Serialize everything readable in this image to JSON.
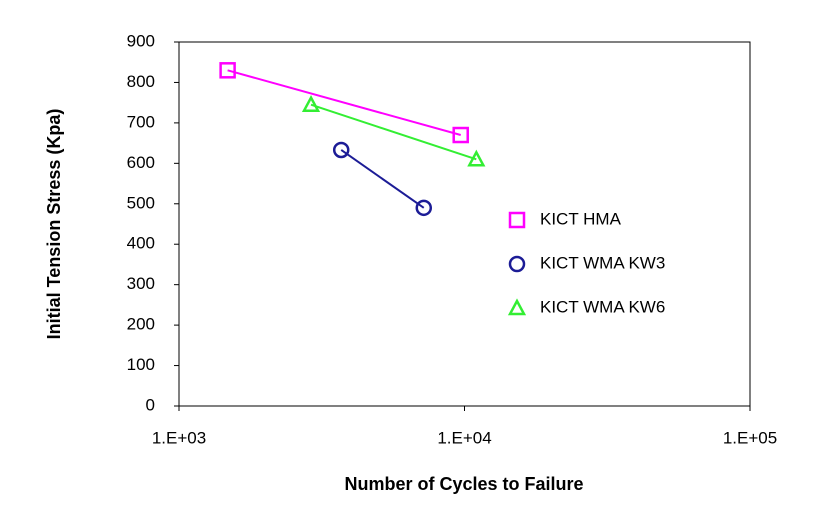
{
  "chart_data": {
    "type": "line",
    "x_label": "Number of Cycles to Failure",
    "y_label": "Initial Tension Stress (Kpa)",
    "xscale": "log",
    "xlim": [
      1000,
      100000
    ],
    "xticks": [
      {
        "value": 1000,
        "label": "1.E+03"
      },
      {
        "value": 10000,
        "label": "1.E+04"
      },
      {
        "value": 100000,
        "label": "1.E+05"
      }
    ],
    "ylim": [
      0,
      900
    ],
    "yticks": [
      0,
      100,
      200,
      300,
      400,
      500,
      600,
      700,
      800,
      900
    ],
    "grid": false,
    "legend": "right",
    "series": [
      {
        "name": "KICT HMA",
        "color": "#ff00ff",
        "marker": "square",
        "x": [
          1480,
          9700
        ],
        "values": [
          830,
          670
        ]
      },
      {
        "name": "KICT WMA KW3",
        "color": "#1c1c96",
        "marker": "circle",
        "x": [
          3700,
          7200
        ],
        "values": [
          633,
          490
        ]
      },
      {
        "name": "KICT WMA KW6",
        "color": "#33ee33",
        "marker": "triangle",
        "x": [
          2900,
          11000
        ],
        "values": [
          745,
          610
        ]
      }
    ]
  }
}
